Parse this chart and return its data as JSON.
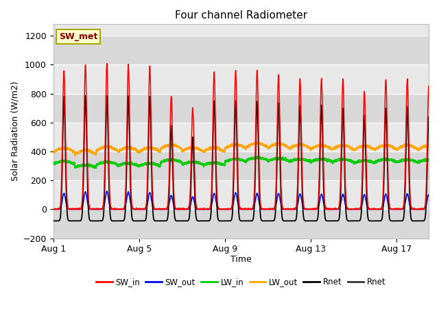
{
  "title": "Four channel Radiometer",
  "xlabel": "Time",
  "ylabel": "Solar Radiation (W/m2)",
  "ylim": [
    -200,
    1280
  ],
  "yticks": [
    -200,
    0,
    200,
    400,
    600,
    800,
    1000,
    1200
  ],
  "plot_bg_color": "#e8e8e8",
  "n_days": 18,
  "pts_per_day": 288,
  "sw_in_peaks": [
    960,
    1000,
    1005,
    1000,
    990,
    780,
    700,
    950,
    960,
    960,
    930,
    900,
    905,
    900,
    815,
    900,
    900,
    850
  ],
  "sw_out_peaks": [
    110,
    120,
    125,
    120,
    115,
    95,
    85,
    110,
    115,
    110,
    110,
    105,
    105,
    105,
    100,
    105,
    105,
    100
  ],
  "lw_in_base": [
    315,
    290,
    310,
    300,
    300,
    325,
    310,
    305,
    330,
    340,
    335,
    330,
    330,
    328,
    320,
    328,
    325,
    325
  ],
  "lw_in_amp": 25,
  "lw_out_base": [
    395,
    380,
    405,
    398,
    398,
    418,
    400,
    398,
    420,
    430,
    425,
    420,
    415,
    415,
    410,
    415,
    415,
    412
  ],
  "lw_out_amp": 40,
  "rnet_night": -80,
  "rnet_day_peaks": [
    780,
    785,
    785,
    785,
    780,
    580,
    500,
    750,
    750,
    745,
    735,
    720,
    720,
    700,
    650,
    700,
    710,
    640
  ],
  "sharpness": 8,
  "colors": {
    "sw_in": "#ff0000",
    "sw_out": "#0000ff",
    "lw_in": "#00cc00",
    "lw_out": "#ffa500",
    "rnet": "#000000"
  },
  "legend_labels": [
    "SW_in",
    "SW_out",
    "LW_in",
    "LW_out",
    "Rnet",
    "Rnet"
  ],
  "legend_colors": [
    "#ff0000",
    "#0000ff",
    "#00cc00",
    "#ffa500",
    "#000000",
    "#333333"
  ],
  "annotation_label": "SW_met",
  "annotation_color": "#8b0000",
  "annotation_bg": "#ffffcc",
  "annotation_edge": "#aaa800",
  "x_tick_labels": [
    "Aug 1",
    "Aug 5",
    "Aug 9",
    "Aug 13",
    "Aug 17"
  ],
  "x_tick_positions": [
    0,
    4,
    8,
    12,
    16
  ],
  "grid_color": "#ffffff",
  "stripe_color1": "#e8e8e8",
  "stripe_color2": "#d8d8d8"
}
